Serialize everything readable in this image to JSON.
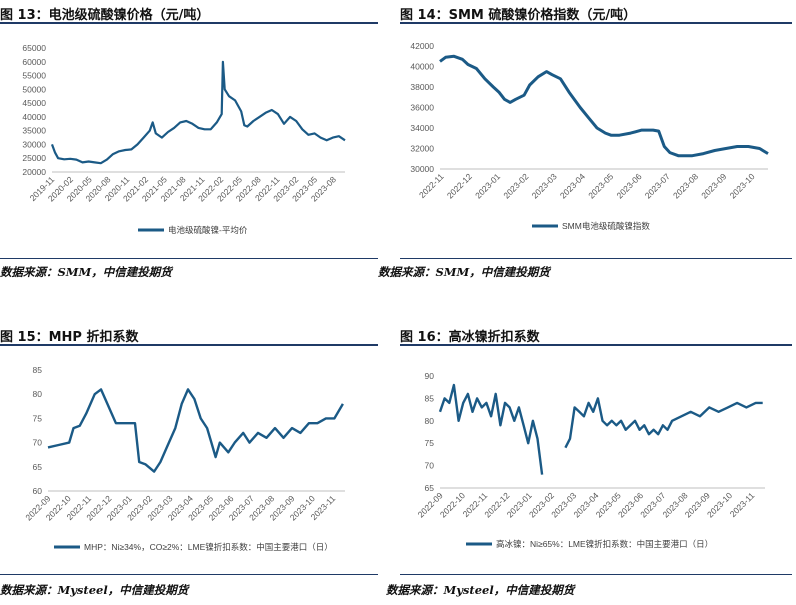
{
  "chart_data": [
    {
      "type": "line",
      "title": "图 13：电池级硫酸镍价格（元/吨）",
      "source": "数据来源：SMM，中信建投期货",
      "series": [
        {
          "name": "电池级硫酸镍-平均价"
        }
      ],
      "ylim": [
        20000,
        65000
      ],
      "yticks": [
        "20000",
        "25000",
        "30000",
        "35000",
        "40000",
        "45000",
        "50000",
        "55000",
        "60000",
        "65000"
      ],
      "xticks": [
        "2019-11",
        "2020-02",
        "2020-05",
        "2020-08",
        "2020-11",
        "2021-02",
        "2021-05",
        "2021-08",
        "2021-11",
        "2022-02",
        "2022-05",
        "2022-08",
        "2022-11",
        "2023-02",
        "2023-05",
        "2023-08"
      ],
      "x_range": [
        0,
        48
      ],
      "points": [
        [
          0,
          30000
        ],
        [
          0.5,
          27000
        ],
        [
          1,
          25000
        ],
        [
          2,
          24600
        ],
        [
          3,
          24800
        ],
        [
          4,
          24500
        ],
        [
          5,
          23500
        ],
        [
          6,
          23800
        ],
        [
          7,
          23500
        ],
        [
          8,
          23200
        ],
        [
          9,
          24500
        ],
        [
          10,
          26500
        ],
        [
          11,
          27500
        ],
        [
          12,
          28000
        ],
        [
          13,
          28200
        ],
        [
          14,
          30000
        ],
        [
          15,
          32500
        ],
        [
          16,
          35000
        ],
        [
          16.5,
          38000
        ],
        [
          17,
          34000
        ],
        [
          18,
          32500
        ],
        [
          19,
          34500
        ],
        [
          20,
          36000
        ],
        [
          21,
          38000
        ],
        [
          22,
          38500
        ],
        [
          23,
          37500
        ],
        [
          24,
          36000
        ],
        [
          25,
          35500
        ],
        [
          26,
          35500
        ],
        [
          27,
          38000
        ],
        [
          27.8,
          41000
        ],
        [
          28,
          60000
        ],
        [
          28.3,
          50000
        ],
        [
          29,
          47500
        ],
        [
          30,
          46000
        ],
        [
          31,
          42000
        ],
        [
          31.5,
          37000
        ],
        [
          32,
          36500
        ],
        [
          33,
          38500
        ],
        [
          34,
          40000
        ],
        [
          35,
          41500
        ],
        [
          36,
          42500
        ],
        [
          37,
          41000
        ],
        [
          38,
          37500
        ],
        [
          39,
          40000
        ],
        [
          40,
          38500
        ],
        [
          41,
          35500
        ],
        [
          42,
          33500
        ],
        [
          43,
          34000
        ],
        [
          44,
          32500
        ],
        [
          45,
          31500
        ],
        [
          46,
          32500
        ],
        [
          47,
          33000
        ],
        [
          48,
          31500
        ]
      ]
    },
    {
      "type": "line",
      "title": "图 14：SMM 硫酸镍价格指数（元/吨）",
      "source": "数据来源：SMM，中信建投期货",
      "series": [
        {
          "name": "SMM电池级硫酸镍指数"
        }
      ],
      "ylim": [
        30000,
        42000
      ],
      "yticks": [
        "30000",
        "32000",
        "34000",
        "36000",
        "38000",
        "40000",
        "42000"
      ],
      "xticks": [
        "2022-11",
        "2022-12",
        "2023-01",
        "2023-02",
        "2023-03",
        "2023-04",
        "2023-05",
        "2023-06",
        "2023-07",
        "2023-08",
        "2023-09",
        "2023-10"
      ],
      "x_range": [
        0,
        11.7
      ],
      "points": [
        [
          0,
          40500
        ],
        [
          0.2,
          40900
        ],
        [
          0.5,
          41000
        ],
        [
          0.8,
          40700
        ],
        [
          1,
          40200
        ],
        [
          1.3,
          39800
        ],
        [
          1.6,
          38800
        ],
        [
          1.9,
          38000
        ],
        [
          2.1,
          37500
        ],
        [
          2.3,
          36800
        ],
        [
          2.5,
          36500
        ],
        [
          2.7,
          36800
        ],
        [
          3.0,
          37200
        ],
        [
          3.2,
          38200
        ],
        [
          3.5,
          39000
        ],
        [
          3.8,
          39500
        ],
        [
          4.0,
          39200
        ],
        [
          4.3,
          38800
        ],
        [
          4.6,
          37500
        ],
        [
          5.0,
          36000
        ],
        [
          5.3,
          35000
        ],
        [
          5.6,
          34000
        ],
        [
          5.9,
          33500
        ],
        [
          6.1,
          33300
        ],
        [
          6.4,
          33300
        ],
        [
          6.8,
          33500
        ],
        [
          7.2,
          33800
        ],
        [
          7.6,
          33800
        ],
        [
          7.8,
          33700
        ],
        [
          8.0,
          32200
        ],
        [
          8.2,
          31600
        ],
        [
          8.5,
          31300
        ],
        [
          9.0,
          31300
        ],
        [
          9.4,
          31500
        ],
        [
          9.8,
          31800
        ],
        [
          10.2,
          32000
        ],
        [
          10.6,
          32200
        ],
        [
          11.0,
          32200
        ],
        [
          11.4,
          32000
        ],
        [
          11.7,
          31500
        ]
      ]
    },
    {
      "type": "line",
      "title": "图 15：MHP 折扣系数",
      "source": "数据来源：Mysteel，中信建投期货",
      "series": [
        {
          "name": "MHP：Ni≥34%，CO≥2%：LME镍折扣系数：中国主要港口（日）"
        }
      ],
      "ylim": [
        60,
        85
      ],
      "yticks": [
        "60",
        "65",
        "70",
        "75",
        "80",
        "85"
      ],
      "xticks": [
        "2022-09",
        "2022-10",
        "2022-11",
        "2022-12",
        "2023-01",
        "2023-02",
        "2023-03",
        "2023-04",
        "2023-05",
        "2023-06",
        "2023-07",
        "2023-08",
        "2023-09",
        "2023-10",
        "2023-11"
      ],
      "x_range": [
        0,
        14
      ],
      "points": [
        [
          0,
          69
        ],
        [
          0.5,
          69.5
        ],
        [
          1,
          70
        ],
        [
          1.2,
          73
        ],
        [
          1.5,
          73.5
        ],
        [
          1.8,
          76
        ],
        [
          2.2,
          80
        ],
        [
          2.5,
          81
        ],
        [
          2.8,
          78
        ],
        [
          3.2,
          74
        ],
        [
          3.5,
          74
        ],
        [
          3.8,
          74
        ],
        [
          4.1,
          74
        ],
        [
          4.3,
          66
        ],
        [
          4.6,
          65.5
        ],
        [
          5.0,
          64
        ],
        [
          5.3,
          66
        ],
        [
          5.6,
          69
        ],
        [
          6.0,
          73
        ],
        [
          6.3,
          78
        ],
        [
          6.6,
          81
        ],
        [
          6.9,
          79
        ],
        [
          7.2,
          75
        ],
        [
          7.5,
          73
        ],
        [
          7.7,
          70
        ],
        [
          7.9,
          67
        ],
        [
          8.1,
          70
        ],
        [
          8.5,
          68
        ],
        [
          8.8,
          70
        ],
        [
          9.2,
          72
        ],
        [
          9.5,
          70
        ],
        [
          9.9,
          72
        ],
        [
          10.3,
          71
        ],
        [
          10.7,
          73
        ],
        [
          11.1,
          71
        ],
        [
          11.5,
          73
        ],
        [
          11.9,
          72
        ],
        [
          12.3,
          74
        ],
        [
          12.7,
          74
        ],
        [
          13.1,
          75
        ],
        [
          13.5,
          75
        ],
        [
          13.9,
          78
        ]
      ]
    },
    {
      "type": "line",
      "title": "图 16：高冰镍折扣系数",
      "source": "数据来源：Mysteel，中信建投期货",
      "series": [
        {
          "name": "高冰镍：Ni≥65%：LME镍折扣系数：中国主要港口（日）"
        }
      ],
      "ylim": [
        65,
        90
      ],
      "yticks": [
        "65",
        "70",
        "75",
        "80",
        "85",
        "90"
      ],
      "xticks": [
        "2022-09",
        "2022-10",
        "2022-11",
        "2022-12",
        "2023-01",
        "2023-02",
        "2023-03",
        "2023-04",
        "2023-05",
        "2023-06",
        "2023-07",
        "2023-08",
        "2023-09",
        "2023-10",
        "2023-11"
      ],
      "x_range": [
        0,
        14
      ],
      "points": [
        [
          0,
          82
        ],
        [
          0.2,
          85
        ],
        [
          0.4,
          84
        ],
        [
          0.6,
          88
        ],
        [
          0.8,
          80
        ],
        [
          1.0,
          84
        ],
        [
          1.2,
          86
        ],
        [
          1.4,
          82
        ],
        [
          1.6,
          85
        ],
        [
          1.8,
          83
        ],
        [
          2.0,
          84
        ],
        [
          2.2,
          81
        ],
        [
          2.4,
          86
        ],
        [
          2.6,
          79
        ],
        [
          2.8,
          84
        ],
        [
          3.0,
          83
        ],
        [
          3.2,
          80
        ],
        [
          3.4,
          83
        ],
        [
          3.6,
          79
        ],
        [
          3.8,
          75
        ],
        [
          4.0,
          80
        ],
        [
          4.2,
          76
        ],
        [
          4.4,
          68
        ],
        [
          null,
          null
        ],
        [
          5.4,
          74
        ],
        [
          5.6,
          76
        ],
        [
          5.8,
          83
        ],
        [
          6.0,
          82
        ],
        [
          6.2,
          81
        ],
        [
          6.4,
          84
        ],
        [
          6.6,
          82
        ],
        [
          6.8,
          85
        ],
        [
          7.0,
          80
        ],
        [
          7.2,
          79
        ],
        [
          7.4,
          80
        ],
        [
          7.6,
          79
        ],
        [
          7.8,
          80
        ],
        [
          8.0,
          78
        ],
        [
          8.2,
          79
        ],
        [
          8.4,
          80
        ],
        [
          8.6,
          78
        ],
        [
          8.8,
          79
        ],
        [
          9.0,
          77
        ],
        [
          9.2,
          78
        ],
        [
          9.4,
          77
        ],
        [
          9.6,
          79
        ],
        [
          9.8,
          78
        ],
        [
          10.0,
          80
        ],
        [
          10.4,
          81
        ],
        [
          10.8,
          82
        ],
        [
          11.2,
          81
        ],
        [
          11.6,
          83
        ],
        [
          12.0,
          82
        ],
        [
          12.4,
          83
        ],
        [
          12.8,
          84
        ],
        [
          13.2,
          83
        ],
        [
          13.6,
          84
        ],
        [
          13.9,
          84
        ]
      ]
    }
  ]
}
